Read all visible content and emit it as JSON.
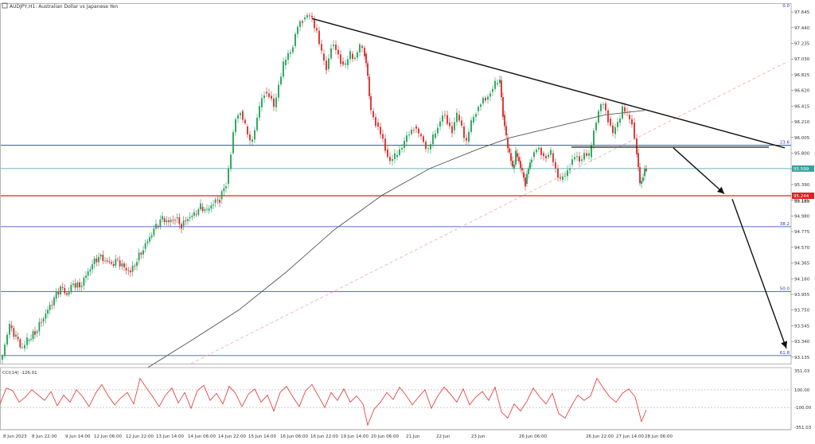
{
  "chart_data": [
    {
      "type": "candlestick",
      "title": "AUDJPY,H1:  Australian Dollar vs Japanese Yen",
      "symbol_badge": "AUDJPY,H1",
      "y_ticks": [
        "97.645",
        "97.440",
        "97.235",
        "97.030",
        "96.825",
        "96.620",
        "96.415",
        "96.210",
        "96.005",
        "95.800",
        "95.595",
        "95.390",
        "95.185",
        "94.980",
        "94.775",
        "94.570",
        "94.365",
        "94.160",
        "93.955",
        "93.750",
        "93.545",
        "93.340",
        "93.135"
      ],
      "ylim": [
        93.05,
        97.75
      ],
      "x_ticks": [
        "8 Jun 2023",
        "8 Jun 22:00",
        "9 Jun 14:00",
        "12 Jun 06:00",
        "12 Jun 22:00",
        "13 Jun 14:00",
        "14 Jun 06:00",
        "14 Jun 22:00",
        "15 Jun 14:00",
        "16 Jun 06:00",
        "16 Jun 22:00",
        "19 Jun 14:00",
        "20 Jun 06:00",
        "21 Jun",
        "22 Jun",
        "23 Jun",
        "26 Jun 06:00",
        "26 Jun 22:00",
        "27 Jun 14:00",
        "28 Jun 06:00"
      ],
      "price_points": [
        [
          0,
          93.1
        ],
        [
          6,
          93.3
        ],
        [
          12,
          93.55
        ],
        [
          20,
          93.4
        ],
        [
          28,
          93.25
        ],
        [
          34,
          93.35
        ],
        [
          44,
          93.45
        ],
        [
          52,
          93.6
        ],
        [
          60,
          93.75
        ],
        [
          68,
          93.9
        ],
        [
          76,
          94.05
        ],
        [
          84,
          93.95
        ],
        [
          92,
          94.1
        ],
        [
          100,
          94.05
        ],
        [
          108,
          94.2
        ],
        [
          116,
          94.35
        ],
        [
          124,
          94.45
        ],
        [
          132,
          94.4
        ],
        [
          140,
          94.35
        ],
        [
          148,
          94.4
        ],
        [
          156,
          94.3
        ],
        [
          164,
          94.25
        ],
        [
          172,
          94.4
        ],
        [
          180,
          94.55
        ],
        [
          188,
          94.7
        ],
        [
          196,
          94.85
        ],
        [
          204,
          94.95
        ],
        [
          212,
          94.9
        ],
        [
          220,
          94.95
        ],
        [
          228,
          94.85
        ],
        [
          236,
          94.95
        ],
        [
          244,
          95.0
        ],
        [
          252,
          95.1
        ],
        [
          260,
          95.05
        ],
        [
          268,
          95.15
        ],
        [
          276,
          95.2
        ],
        [
          284,
          95.4
        ],
        [
          290,
          95.8
        ],
        [
          296,
          96.25
        ],
        [
          302,
          96.35
        ],
        [
          308,
          96.15
        ],
        [
          314,
          95.95
        ],
        [
          320,
          96.1
        ],
        [
          326,
          96.4
        ],
        [
          332,
          96.6
        ],
        [
          338,
          96.55
        ],
        [
          344,
          96.4
        ],
        [
          350,
          96.7
        ],
        [
          356,
          96.95
        ],
        [
          362,
          97.1
        ],
        [
          368,
          97.2
        ],
        [
          374,
          97.45
        ],
        [
          380,
          97.55
        ],
        [
          386,
          97.6
        ],
        [
          392,
          97.55
        ],
        [
          398,
          97.4
        ],
        [
          404,
          97.1
        ],
        [
          410,
          96.9
        ],
        [
          416,
          97.2
        ],
        [
          422,
          97.15
        ],
        [
          428,
          97.0
        ],
        [
          434,
          96.95
        ],
        [
          440,
          97.1
        ],
        [
          446,
          97.05
        ],
        [
          452,
          97.2
        ],
        [
          458,
          97.1
        ],
        [
          462,
          96.8
        ],
        [
          466,
          96.35
        ],
        [
          472,
          96.2
        ],
        [
          478,
          96.05
        ],
        [
          484,
          95.85
        ],
        [
          490,
          95.7
        ],
        [
          496,
          95.75
        ],
        [
          502,
          95.85
        ],
        [
          508,
          95.95
        ],
        [
          514,
          96.05
        ],
        [
          520,
          96.15
        ],
        [
          526,
          96.05
        ],
        [
          532,
          95.95
        ],
        [
          538,
          95.85
        ],
        [
          544,
          96.0
        ],
        [
          550,
          96.15
        ],
        [
          556,
          96.3
        ],
        [
          562,
          96.2
        ],
        [
          568,
          96.1
        ],
        [
          574,
          96.3
        ],
        [
          580,
          96.15
        ],
        [
          586,
          95.95
        ],
        [
          592,
          96.2
        ],
        [
          598,
          96.35
        ],
        [
          604,
          96.45
        ],
        [
          610,
          96.5
        ],
        [
          616,
          96.6
        ],
        [
          622,
          96.7
        ],
        [
          628,
          96.75
        ],
        [
          632,
          96.3
        ],
        [
          636,
          96.0
        ],
        [
          640,
          95.8
        ],
        [
          644,
          95.6
        ],
        [
          648,
          95.8
        ],
        [
          652,
          95.7
        ],
        [
          656,
          95.55
        ],
        [
          660,
          95.4
        ],
        [
          664,
          95.6
        ],
        [
          668,
          95.75
        ],
        [
          674,
          95.85
        ],
        [
          680,
          95.8
        ],
        [
          686,
          95.75
        ],
        [
          692,
          95.8
        ],
        [
          698,
          95.6
        ],
        [
          704,
          95.45
        ],
        [
          710,
          95.5
        ],
        [
          716,
          95.65
        ],
        [
          722,
          95.75
        ],
        [
          728,
          95.7
        ],
        [
          734,
          95.8
        ],
        [
          740,
          95.75
        ],
        [
          746,
          96.1
        ],
        [
          752,
          96.35
        ],
        [
          758,
          96.45
        ],
        [
          764,
          96.25
        ],
        [
          770,
          96.05
        ],
        [
          776,
          96.2
        ],
        [
          782,
          96.4
        ],
        [
          788,
          96.3
        ],
        [
          794,
          96.2
        ],
        [
          800,
          95.8
        ],
        [
          804,
          95.4
        ],
        [
          808,
          95.5
        ],
        [
          812,
          95.6
        ]
      ],
      "ma_points": [
        [
          186,
          93.0
        ],
        [
          240,
          93.35
        ],
        [
          300,
          93.75
        ],
        [
          360,
          94.25
        ],
        [
          420,
          94.8
        ],
        [
          480,
          95.25
        ],
        [
          540,
          95.6
        ],
        [
          600,
          95.85
        ],
        [
          640,
          96.0
        ],
        [
          700,
          96.15
        ],
        [
          760,
          96.3
        ],
        [
          810,
          96.36
        ]
      ],
      "levels": [
        {
          "price": 95.905,
          "label": "23.6",
          "color": "#1f3fbf"
        },
        {
          "price": 95.599,
          "label": "95.599",
          "color": "#3aa0a0"
        },
        {
          "price": 95.244,
          "label": "95.244",
          "color": "#e02020"
        },
        {
          "price": 94.84,
          "label": "38.2",
          "color": "#1f3fbf"
        },
        {
          "price": 93.99,
          "label": "50.0",
          "color": "#1f3fbf"
        },
        {
          "price": 93.155,
          "label": "61.8",
          "color": "#1f3fbf"
        }
      ],
      "top_right_label": "0.0",
      "current_price_tag": "95.599",
      "red_price_tag": "95.244",
      "red_extra_tick": "95.185",
      "trendline": [
        [
          392,
          97.56
        ],
        [
          986,
          95.87
        ]
      ],
      "pattern_line": [
        [
          718,
          95.88
        ],
        [
          966,
          95.88
        ]
      ],
      "arrows": [
        {
          "from": [
            846,
            95.87
          ],
          "to": [
            910,
            95.27
          ]
        },
        {
          "from": [
            920,
            95.2
          ],
          "to": [
            988,
            93.25
          ]
        }
      ],
      "diag_dashed": [
        [
          240,
          93.05
        ],
        [
          990,
          97.0
        ]
      ],
      "indicator": {
        "label": "CCI(14) -126.01",
        "y_ticks": [
          "351.03",
          "100.00",
          "-100.00",
          "-351.03"
        ],
        "ylim": [
          -351.03,
          351.03
        ],
        "values": [
          [
            0,
            -60
          ],
          [
            8,
            120
          ],
          [
            16,
            90
          ],
          [
            24,
            -40
          ],
          [
            32,
            20
          ],
          [
            40,
            100
          ],
          [
            48,
            40
          ],
          [
            56,
            -20
          ],
          [
            64,
            80
          ],
          [
            72,
            -80
          ],
          [
            80,
            40
          ],
          [
            88,
            -40
          ],
          [
            96,
            100
          ],
          [
            104,
            20
          ],
          [
            112,
            -90
          ],
          [
            120,
            60
          ],
          [
            128,
            160
          ],
          [
            136,
            30
          ],
          [
            144,
            -70
          ],
          [
            152,
            10
          ],
          [
            160,
            70
          ],
          [
            168,
            -60
          ],
          [
            176,
            230
          ],
          [
            184,
            120
          ],
          [
            192,
            20
          ],
          [
            200,
            -90
          ],
          [
            208,
            40
          ],
          [
            216,
            120
          ],
          [
            224,
            -50
          ],
          [
            232,
            70
          ],
          [
            240,
            -110
          ],
          [
            248,
            90
          ],
          [
            256,
            150
          ],
          [
            264,
            -20
          ],
          [
            272,
            60
          ],
          [
            280,
            -60
          ],
          [
            288,
            140
          ],
          [
            296,
            60
          ],
          [
            304,
            -90
          ],
          [
            312,
            50
          ],
          [
            320,
            110
          ],
          [
            328,
            -40
          ],
          [
            336,
            40
          ],
          [
            344,
            -140
          ],
          [
            352,
            70
          ],
          [
            360,
            140
          ],
          [
            368,
            20
          ],
          [
            376,
            -90
          ],
          [
            384,
            90
          ],
          [
            392,
            160
          ],
          [
            400,
            30
          ],
          [
            408,
            -100
          ],
          [
            416,
            70
          ],
          [
            424,
            -20
          ],
          [
            432,
            110
          ],
          [
            440,
            -40
          ],
          [
            448,
            30
          ],
          [
            456,
            -60
          ],
          [
            462,
            -300
          ],
          [
            470,
            -120
          ],
          [
            478,
            -40
          ],
          [
            486,
            70
          ],
          [
            494,
            -10
          ],
          [
            502,
            130
          ],
          [
            510,
            40
          ],
          [
            518,
            -70
          ],
          [
            526,
            20
          ],
          [
            534,
            100
          ],
          [
            542,
            -110
          ],
          [
            550,
            30
          ],
          [
            558,
            130
          ],
          [
            566,
            50
          ],
          [
            574,
            -40
          ],
          [
            582,
            110
          ],
          [
            590,
            -70
          ],
          [
            598,
            20
          ],
          [
            606,
            80
          ],
          [
            614,
            -20
          ],
          [
            622,
            130
          ],
          [
            630,
            -150
          ],
          [
            638,
            -220
          ],
          [
            646,
            -60
          ],
          [
            654,
            -140
          ],
          [
            662,
            -30
          ],
          [
            670,
            120
          ],
          [
            678,
            20
          ],
          [
            686,
            -60
          ],
          [
            694,
            60
          ],
          [
            702,
            -170
          ],
          [
            710,
            -220
          ],
          [
            718,
            -80
          ],
          [
            726,
            40
          ],
          [
            734,
            -20
          ],
          [
            742,
            30
          ],
          [
            750,
            230
          ],
          [
            758,
            120
          ],
          [
            766,
            20
          ],
          [
            774,
            -40
          ],
          [
            782,
            60
          ],
          [
            790,
            110
          ],
          [
            798,
            20
          ],
          [
            806,
            -260
          ],
          [
            812,
            -126
          ]
        ]
      }
    }
  ]
}
